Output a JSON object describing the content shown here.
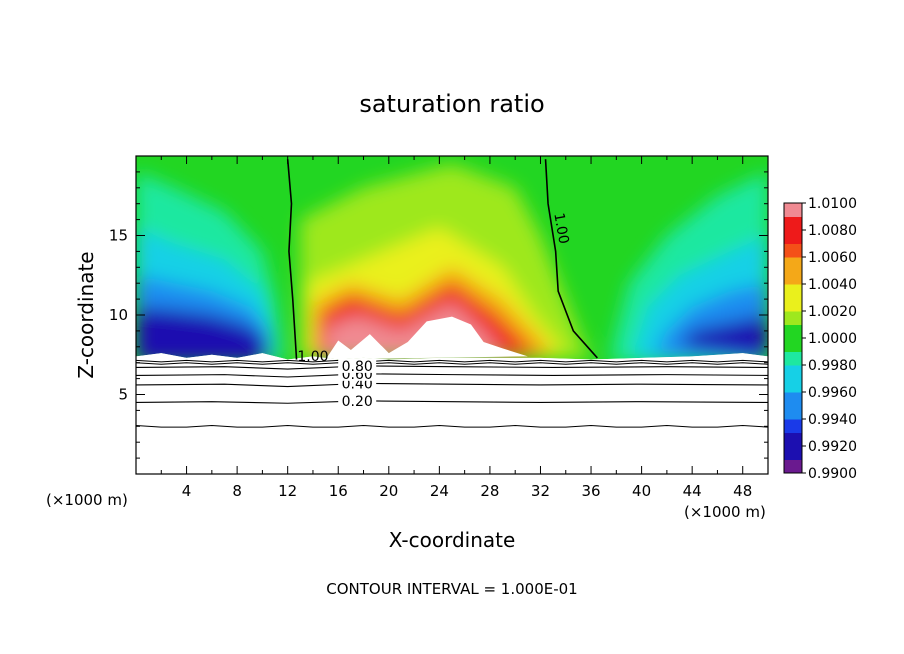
{
  "chart_data": {
    "type": "heatmap",
    "title": "saturation ratio",
    "xlabel": "X-coordinate",
    "ylabel": "Z-coordinate",
    "x_unit_left": "(×1000 m)",
    "x_unit_right": "(×1000 m)",
    "xlim": [
      0,
      50
    ],
    "ylim": [
      0,
      20
    ],
    "x_ticks": [
      4,
      8,
      12,
      16,
      20,
      24,
      28,
      32,
      36,
      40,
      44,
      48
    ],
    "x_tick_labels": [
      "4",
      "8",
      "12",
      "16",
      "20",
      "24",
      "28",
      "32",
      "36",
      "40",
      "44",
      "48"
    ],
    "y_ticks": [
      5,
      10,
      15
    ],
    "y_tick_labels": [
      "5",
      "10",
      "15"
    ],
    "colorbar": {
      "min": 0.99,
      "max": 1.01,
      "labels": [
        "1.0100",
        "1.0080",
        "1.0060",
        "1.0040",
        "1.0020",
        "1.0000",
        "0.9980",
        "0.9960",
        "0.9940",
        "0.9920",
        "0.9900"
      ],
      "values": [
        1.01,
        1.008,
        1.006,
        1.004,
        1.002,
        1.0,
        0.998,
        0.996,
        0.994,
        0.992,
        0.99
      ]
    },
    "contours": [
      {
        "label": "1.00",
        "kind": "sat",
        "points": [
          [
            12.0,
            19.8
          ],
          [
            12.3,
            17
          ],
          [
            12.1,
            14
          ],
          [
            12.4,
            11
          ],
          [
            12.6,
            8.5
          ],
          [
            12.7,
            7.2
          ]
        ]
      },
      {
        "label": "1.00",
        "kind": "sat",
        "points": [
          [
            32.4,
            19.8
          ],
          [
            32.6,
            17
          ],
          [
            33.2,
            14
          ],
          [
            33.4,
            11.5
          ],
          [
            34.6,
            9
          ],
          [
            36.5,
            7.3
          ]
        ]
      },
      {
        "label": "0.20",
        "kind": "level",
        "points": [
          [
            0,
            4.5
          ],
          [
            6,
            4.55
          ],
          [
            12,
            4.45
          ],
          [
            18,
            4.6
          ],
          [
            25,
            4.55
          ],
          [
            32,
            4.5
          ],
          [
            40,
            4.55
          ],
          [
            50,
            4.5
          ]
        ]
      },
      {
        "label": "0.40",
        "kind": "level",
        "points": [
          [
            0,
            5.6
          ],
          [
            7,
            5.65
          ],
          [
            12,
            5.5
          ],
          [
            18,
            5.7
          ],
          [
            25,
            5.65
          ],
          [
            32,
            5.6
          ],
          [
            40,
            5.65
          ],
          [
            50,
            5.6
          ]
        ]
      },
      {
        "label": "0.60",
        "kind": "level",
        "points": [
          [
            0,
            6.2
          ],
          [
            7,
            6.25
          ],
          [
            12,
            6.1
          ],
          [
            18,
            6.3
          ],
          [
            25,
            6.25
          ],
          [
            33,
            6.2
          ],
          [
            42,
            6.25
          ],
          [
            50,
            6.2
          ]
        ]
      },
      {
        "label": "0.80",
        "kind": "level",
        "points": [
          [
            0,
            6.7
          ],
          [
            7,
            6.75
          ],
          [
            12,
            6.6
          ],
          [
            18,
            6.8
          ],
          [
            25,
            6.75
          ],
          [
            33,
            6.7
          ],
          [
            42,
            6.75
          ],
          [
            50,
            6.7
          ]
        ]
      }
    ],
    "annotation": "CONTOUR INTERVAL = 1.000E-01"
  }
}
